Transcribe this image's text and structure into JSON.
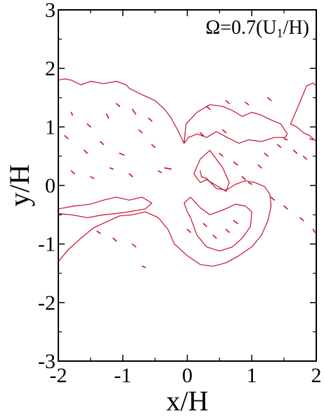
{
  "chart_data": {
    "type": "line",
    "title": "",
    "xlabel": "x/H",
    "ylabel": "y/H",
    "xlim": [
      -2,
      2
    ],
    "ylim": [
      -3,
      3
    ],
    "x_ticks": [
      -2,
      -1,
      0,
      1,
      2
    ],
    "y_ticks": [
      -3,
      -2,
      -1,
      0,
      1,
      2,
      3
    ],
    "x_tick_labels": [
      "-2",
      "-1",
      "0",
      "1",
      "2"
    ],
    "y_tick_labels": [
      "-3",
      "-2",
      "-1",
      "0",
      "1",
      "2",
      "3"
    ],
    "annotation": {
      "prefix": "Ω=0.7(U",
      "subscript": "1",
      "suffix": "/H)"
    },
    "line_color": "#c8102e",
    "grid": false,
    "series": [
      {
        "kind": "upper-left-boundary",
        "x": [
          -2.0,
          -1.9,
          -1.8,
          -1.65,
          -1.5,
          -1.3,
          -1.1,
          -0.95,
          -0.9
        ],
        "y": [
          1.8,
          1.82,
          1.8,
          1.72,
          1.78,
          1.74,
          1.78,
          1.72,
          1.66
        ]
      },
      {
        "kind": "upper-mid-boundary",
        "x": [
          -0.9,
          -0.7,
          -0.5,
          -0.35,
          -0.25,
          -0.15,
          -0.05
        ],
        "y": [
          1.66,
          1.55,
          1.45,
          1.3,
          1.15,
          0.95,
          0.72
        ]
      },
      {
        "kind": "upper-right-lobe",
        "x": [
          -0.05,
          -0.02,
          0.15,
          0.35,
          0.55,
          0.7,
          0.85,
          1.0,
          1.15,
          1.3,
          1.45,
          1.55,
          1.52,
          1.35,
          1.15,
          0.95,
          0.8,
          0.62,
          0.45,
          0.3,
          0.15,
          0.02,
          -0.05
        ],
        "y": [
          0.72,
          1.05,
          1.25,
          1.38,
          1.35,
          1.28,
          1.18,
          1.25,
          1.2,
          1.12,
          1.05,
          0.88,
          0.82,
          0.82,
          0.75,
          0.78,
          0.72,
          0.82,
          0.92,
          0.82,
          0.88,
          0.82,
          0.72
        ]
      },
      {
        "kind": "right-edge-lobe",
        "x": [
          1.6,
          1.7,
          1.85,
          1.95,
          2.0,
          2.0,
          1.9,
          1.8,
          1.7,
          1.6
        ],
        "y": [
          1.05,
          1.3,
          1.7,
          1.75,
          1.7,
          0.75,
          0.85,
          0.9,
          1.0,
          1.05
        ]
      },
      {
        "kind": "lower-envelope",
        "x": [
          -2.0,
          -1.85,
          -1.65,
          -1.45,
          -1.25,
          -1.05,
          -0.85,
          -0.65,
          -0.45,
          -0.3,
          -0.2,
          0.0,
          0.2,
          0.4,
          0.6,
          0.8,
          1.0,
          1.15,
          1.25,
          1.3,
          1.28,
          1.2,
          1.05,
          0.9,
          0.75,
          0.6,
          0.45,
          0.3,
          0.22,
          0.2
        ],
        "y": [
          -1.3,
          -1.1,
          -0.9,
          -0.72,
          -0.62,
          -0.52,
          -0.5,
          -0.45,
          -0.55,
          -0.75,
          -1.0,
          -1.2,
          -1.35,
          -1.38,
          -1.32,
          -1.2,
          -1.05,
          -0.85,
          -0.6,
          -0.35,
          -0.15,
          -0.02,
          0.05,
          0.08,
          0.02,
          -0.08,
          -0.05,
          0.12,
          0.15,
          0.25
        ]
      },
      {
        "kind": "left-shear-layer",
        "x": [
          -2.0,
          -1.75,
          -1.5,
          -1.3,
          -1.1,
          -0.9,
          -0.7,
          -0.55,
          -0.65,
          -0.9,
          -1.1,
          -1.3,
          -1.55,
          -1.8,
          -2.0
        ],
        "y": [
          -0.4,
          -0.35,
          -0.32,
          -0.25,
          -0.2,
          -0.25,
          -0.2,
          -0.3,
          -0.4,
          -0.45,
          -0.48,
          -0.5,
          -0.55,
          -0.5,
          -0.48
        ]
      },
      {
        "kind": "central-core",
        "x": [
          0.05,
          0.15,
          0.3,
          0.5,
          0.7,
          0.85,
          0.98,
          1.0,
          0.9,
          0.75,
          0.55,
          0.35,
          0.2,
          0.05,
          -0.05,
          0.0,
          0.05
        ],
        "y": [
          -0.55,
          -0.85,
          -1.05,
          -1.12,
          -1.05,
          -0.9,
          -0.7,
          -0.45,
          -0.35,
          -0.32,
          -0.42,
          -0.5,
          -0.38,
          -0.2,
          -0.3,
          -0.45,
          -0.55
        ]
      },
      {
        "kind": "central-filament",
        "x": [
          0.1,
          0.2,
          0.35,
          0.45,
          0.55,
          0.65,
          0.6,
          0.45,
          0.3,
          0.2,
          0.1
        ],
        "y": [
          0.2,
          0.45,
          0.6,
          0.45,
          0.3,
          0.05,
          -0.1,
          0.0,
          0.1,
          0.05,
          0.2
        ]
      }
    ],
    "specks": [
      [
        -1.8,
        1.25,
        -1.78,
        1.2
      ],
      [
        -1.55,
        1.05,
        -1.5,
        1.0
      ],
      [
        -1.25,
        1.22,
        -1.22,
        1.15
      ],
      [
        -1.1,
        1.4,
        -1.05,
        1.35
      ],
      [
        -0.85,
        1.3,
        -0.8,
        1.22
      ],
      [
        -0.6,
        1.15,
        -0.55,
        1.1
      ],
      [
        -1.9,
        0.85,
        -1.85,
        0.8
      ],
      [
        -1.6,
        0.6,
        -1.55,
        0.55
      ],
      [
        -1.35,
        0.75,
        -1.3,
        0.7
      ],
      [
        -1.05,
        0.55,
        -0.98,
        0.52
      ],
      [
        -0.75,
        0.95,
        -0.7,
        0.9
      ],
      [
        -0.55,
        0.7,
        -0.5,
        0.65
      ],
      [
        -0.45,
        0.25,
        -0.4,
        0.22
      ],
      [
        -0.35,
        0.3,
        -0.25,
        0.28
      ],
      [
        -1.2,
        0.3,
        -1.15,
        0.28
      ],
      [
        -0.9,
        0.2,
        -0.85,
        0.15
      ],
      [
        -1.8,
        0.25,
        -1.75,
        0.2
      ],
      [
        -1.5,
        0.15,
        -1.45,
        0.12
      ],
      [
        0.5,
        0.55,
        0.55,
        0.5
      ],
      [
        0.72,
        0.4,
        0.78,
        0.35
      ],
      [
        0.85,
        0.15,
        0.9,
        0.1
      ],
      [
        0.95,
        0.05,
        1.0,
        0.02
      ],
      [
        1.1,
        0.35,
        1.15,
        0.3
      ],
      [
        1.2,
        0.55,
        1.25,
        0.5
      ],
      [
        1.4,
        0.7,
        1.45,
        0.65
      ],
      [
        1.5,
        0.8,
        1.55,
        0.78
      ],
      [
        1.65,
        0.6,
        1.7,
        0.55
      ],
      [
        1.8,
        0.5,
        1.85,
        0.45
      ],
      [
        1.9,
        0.8,
        1.95,
        0.78
      ],
      [
        1.3,
        -0.2,
        1.35,
        -0.25
      ],
      [
        1.5,
        -0.35,
        1.55,
        -0.4
      ],
      [
        1.75,
        -0.55,
        1.8,
        -0.6
      ],
      [
        1.95,
        -0.75,
        1.98,
        -0.8
      ],
      [
        -1.15,
        -0.9,
        -1.1,
        -0.95
      ],
      [
        -0.85,
        -1.0,
        -0.8,
        -1.05
      ],
      [
        -0.7,
        -1.38,
        -0.65,
        -1.4
      ],
      [
        -1.4,
        -0.78,
        -1.35,
        -0.82
      ],
      [
        0.0,
        -0.75,
        0.05,
        -0.8
      ],
      [
        0.25,
        -0.65,
        0.3,
        -0.7
      ],
      [
        0.4,
        -0.85,
        0.45,
        -0.9
      ],
      [
        0.6,
        -0.75,
        0.65,
        -0.8
      ],
      [
        0.72,
        -0.6,
        0.78,
        -0.65
      ],
      [
        0.3,
        1.35,
        0.35,
        1.3
      ],
      [
        0.6,
        1.45,
        0.65,
        1.4
      ],
      [
        0.9,
        1.42,
        0.95,
        1.38
      ],
      [
        1.25,
        1.5,
        1.3,
        1.45
      ],
      [
        0.2,
        0.9,
        0.25,
        0.85
      ],
      [
        0.55,
        0.95,
        0.6,
        0.9
      ]
    ]
  }
}
